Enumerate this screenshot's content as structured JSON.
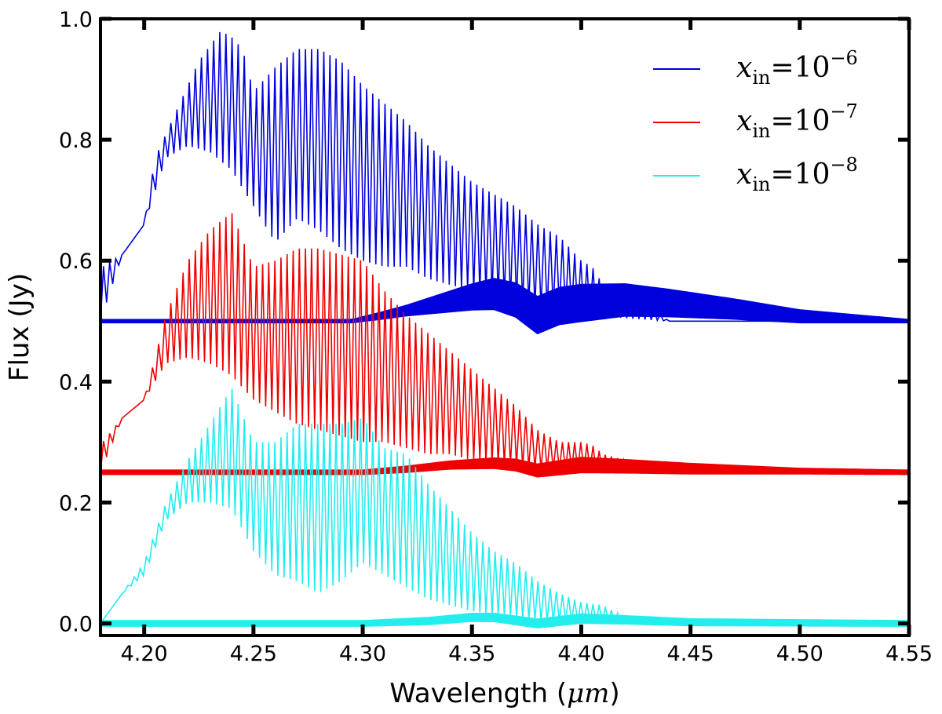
{
  "chart_data": {
    "type": "line",
    "title": "",
    "xlabel_prefix": "Wavelength (",
    "xlabel_unit": "μm",
    "xlabel_suffix": ")",
    "ylabel": "Flux (Jy)",
    "xlim": [
      4.18,
      4.55
    ],
    "ylim": [
      -0.02,
      1.0
    ],
    "x_ticks": [
      4.2,
      4.25,
      4.3,
      4.35,
      4.4,
      4.45,
      4.5,
      4.55
    ],
    "x_tick_labels": [
      "4.20",
      "4.25",
      "4.30",
      "4.35",
      "4.40",
      "4.45",
      "4.50",
      "4.55"
    ],
    "y_ticks": [
      0.0,
      0.2,
      0.4,
      0.6,
      0.8,
      1.0
    ],
    "y_tick_labels": [
      "0.0",
      "0.2",
      "0.4",
      "0.6",
      "0.8",
      "1.0"
    ],
    "grid": false,
    "legend_position": "top-right",
    "series": [
      {
        "name": "x_in=10^-6",
        "label_main": "x",
        "label_sub": "in",
        "label_eq": "=10",
        "label_exp": "−6",
        "color": "#0000dd",
        "offset": 0.5,
        "envelope_upper": [
          [
            4.18,
            0.0
          ],
          [
            4.181,
            0.09
          ],
          [
            4.19,
            0.11
          ],
          [
            4.2,
            0.16
          ],
          [
            4.205,
            0.27
          ],
          [
            4.215,
            0.35
          ],
          [
            4.225,
            0.43
          ],
          [
            4.235,
            0.48
          ],
          [
            4.24,
            0.47
          ],
          [
            4.245,
            0.45
          ],
          [
            4.25,
            0.38
          ],
          [
            4.26,
            0.42
          ],
          [
            4.27,
            0.45
          ],
          [
            4.28,
            0.45
          ],
          [
            4.29,
            0.43
          ],
          [
            4.3,
            0.39
          ],
          [
            4.31,
            0.36
          ],
          [
            4.32,
            0.33
          ],
          [
            4.33,
            0.29
          ],
          [
            4.34,
            0.26
          ],
          [
            4.35,
            0.23
          ],
          [
            4.36,
            0.21
          ],
          [
            4.37,
            0.19
          ],
          [
            4.38,
            0.16
          ],
          [
            4.39,
            0.14
          ],
          [
            4.4,
            0.1
          ],
          [
            4.405,
            0.09
          ],
          [
            4.41,
            0.06
          ],
          [
            4.42,
            0.045
          ],
          [
            4.43,
            0.03
          ],
          [
            4.44,
            0.0
          ],
          [
            4.55,
            0.0
          ]
        ],
        "envelope_lower": [
          [
            4.18,
            0.0
          ],
          [
            4.19,
            0.11
          ],
          [
            4.2,
            0.16
          ],
          [
            4.21,
            0.27
          ],
          [
            4.22,
            0.29
          ],
          [
            4.23,
            0.28
          ],
          [
            4.24,
            0.25
          ],
          [
            4.25,
            0.19
          ],
          [
            4.26,
            0.13
          ],
          [
            4.27,
            0.17
          ],
          [
            4.28,
            0.15
          ],
          [
            4.29,
            0.12
          ],
          [
            4.3,
            0.1
          ],
          [
            4.31,
            0.09
          ],
          [
            4.32,
            0.09
          ],
          [
            4.33,
            0.07
          ],
          [
            4.34,
            0.06
          ],
          [
            4.35,
            0.05
          ],
          [
            4.36,
            0.04
          ],
          [
            4.37,
            0.03
          ],
          [
            4.38,
            0.02
          ],
          [
            4.4,
            0.01
          ],
          [
            4.44,
            0.0
          ],
          [
            4.55,
            0.0
          ]
        ],
        "band_center": [
          [
            4.18,
            0.0
          ],
          [
            4.295,
            0.0
          ],
          [
            4.31,
            0.01
          ],
          [
            4.33,
            0.025
          ],
          [
            4.35,
            0.04
          ],
          [
            4.36,
            0.045
          ],
          [
            4.37,
            0.035
          ],
          [
            4.38,
            0.01
          ],
          [
            4.39,
            0.025
          ],
          [
            4.4,
            0.03
          ],
          [
            4.42,
            0.035
          ],
          [
            4.44,
            0.03
          ],
          [
            4.47,
            0.02
          ],
          [
            4.5,
            0.008
          ],
          [
            4.55,
            0.0
          ]
        ],
        "band_halfwidth": [
          [
            4.18,
            0.002
          ],
          [
            4.295,
            0.002
          ],
          [
            4.32,
            0.008
          ],
          [
            4.36,
            0.025
          ],
          [
            4.38,
            0.03
          ],
          [
            4.4,
            0.03
          ],
          [
            4.45,
            0.02
          ],
          [
            4.5,
            0.01
          ],
          [
            4.55,
            0.002
          ]
        ]
      },
      {
        "name": "x_in=10^-7",
        "label_main": "x",
        "label_sub": "in",
        "label_eq": "=10",
        "label_exp": "−7",
        "color": "#ee0000",
        "offset": 0.25,
        "envelope_upper": [
          [
            4.18,
            0.0
          ],
          [
            4.181,
            0.05
          ],
          [
            4.19,
            0.09
          ],
          [
            4.2,
            0.12
          ],
          [
            4.21,
            0.26
          ],
          [
            4.22,
            0.35
          ],
          [
            4.23,
            0.4
          ],
          [
            4.24,
            0.43
          ],
          [
            4.25,
            0.34
          ],
          [
            4.26,
            0.35
          ],
          [
            4.27,
            0.37
          ],
          [
            4.28,
            0.37
          ],
          [
            4.29,
            0.36
          ],
          [
            4.3,
            0.35
          ],
          [
            4.31,
            0.3
          ],
          [
            4.32,
            0.26
          ],
          [
            4.33,
            0.23
          ],
          [
            4.34,
            0.2
          ],
          [
            4.35,
            0.17
          ],
          [
            4.36,
            0.14
          ],
          [
            4.37,
            0.11
          ],
          [
            4.38,
            0.07
          ],
          [
            4.39,
            0.05
          ],
          [
            4.4,
            0.05
          ],
          [
            4.405,
            0.045
          ],
          [
            4.41,
            0.03
          ],
          [
            4.42,
            0.02
          ],
          [
            4.43,
            0.005
          ],
          [
            4.44,
            0.0
          ],
          [
            4.55,
            0.0
          ]
        ],
        "envelope_lower": [
          [
            4.18,
            0.0
          ],
          [
            4.19,
            0.09
          ],
          [
            4.2,
            0.12
          ],
          [
            4.21,
            0.18
          ],
          [
            4.22,
            0.19
          ],
          [
            4.23,
            0.18
          ],
          [
            4.24,
            0.16
          ],
          [
            4.25,
            0.12
          ],
          [
            4.26,
            0.1
          ],
          [
            4.27,
            0.08
          ],
          [
            4.28,
            0.07
          ],
          [
            4.29,
            0.06
          ],
          [
            4.3,
            0.05
          ],
          [
            4.31,
            0.05
          ],
          [
            4.32,
            0.04
          ],
          [
            4.33,
            0.03
          ],
          [
            4.34,
            0.03
          ],
          [
            4.35,
            0.02
          ],
          [
            4.36,
            0.015
          ],
          [
            4.37,
            0.01
          ],
          [
            4.38,
            0.005
          ],
          [
            4.4,
            0.002
          ],
          [
            4.44,
            0.0
          ],
          [
            4.55,
            0.0
          ]
        ],
        "band_center": [
          [
            4.18,
            0.0
          ],
          [
            4.3,
            0.0
          ],
          [
            4.32,
            0.005
          ],
          [
            4.34,
            0.012
          ],
          [
            4.36,
            0.015
          ],
          [
            4.37,
            0.012
          ],
          [
            4.38,
            0.003
          ],
          [
            4.4,
            0.012
          ],
          [
            4.42,
            0.01
          ],
          [
            4.45,
            0.006
          ],
          [
            4.5,
            0.002
          ],
          [
            4.55,
            0.0
          ]
        ],
        "band_halfwidth": [
          [
            4.18,
            0.003
          ],
          [
            4.3,
            0.003
          ],
          [
            4.34,
            0.006
          ],
          [
            4.38,
            0.01
          ],
          [
            4.4,
            0.012
          ],
          [
            4.45,
            0.008
          ],
          [
            4.5,
            0.004
          ],
          [
            4.55,
            0.003
          ]
        ]
      },
      {
        "name": "x_in=10^-8",
        "label_main": "x",
        "label_sub": "in",
        "label_eq": "=10",
        "label_exp": "−8",
        "color": "#22eeee",
        "offset": 0.0,
        "envelope_upper": [
          [
            4.18,
            0.0
          ],
          [
            4.19,
            0.05
          ],
          [
            4.2,
            0.1
          ],
          [
            4.21,
            0.2
          ],
          [
            4.22,
            0.27
          ],
          [
            4.23,
            0.33
          ],
          [
            4.24,
            0.39
          ],
          [
            4.25,
            0.3
          ],
          [
            4.26,
            0.3
          ],
          [
            4.27,
            0.33
          ],
          [
            4.28,
            0.33
          ],
          [
            4.29,
            0.33
          ],
          [
            4.3,
            0.34
          ],
          [
            4.31,
            0.29
          ],
          [
            4.32,
            0.28
          ],
          [
            4.33,
            0.23
          ],
          [
            4.34,
            0.19
          ],
          [
            4.35,
            0.15
          ],
          [
            4.36,
            0.12
          ],
          [
            4.37,
            0.1
          ],
          [
            4.38,
            0.07
          ],
          [
            4.39,
            0.05
          ],
          [
            4.4,
            0.035
          ],
          [
            4.41,
            0.03
          ],
          [
            4.42,
            0.01
          ],
          [
            4.43,
            0.0
          ],
          [
            4.55,
            0.0
          ]
        ],
        "envelope_lower": [
          [
            4.18,
            0.0
          ],
          [
            4.19,
            0.05
          ],
          [
            4.2,
            0.08
          ],
          [
            4.21,
            0.17
          ],
          [
            4.22,
            0.2
          ],
          [
            4.23,
            0.2
          ],
          [
            4.24,
            0.19
          ],
          [
            4.25,
            0.12
          ],
          [
            4.26,
            0.08
          ],
          [
            4.27,
            0.07
          ],
          [
            4.28,
            0.05
          ],
          [
            4.29,
            0.07
          ],
          [
            4.3,
            0.1
          ],
          [
            4.31,
            0.08
          ],
          [
            4.32,
            0.06
          ],
          [
            4.33,
            0.04
          ],
          [
            4.34,
            0.03
          ],
          [
            4.35,
            0.02
          ],
          [
            4.36,
            0.015
          ],
          [
            4.37,
            0.01
          ],
          [
            4.38,
            0.005
          ],
          [
            4.4,
            0.002
          ],
          [
            4.43,
            0.0
          ],
          [
            4.55,
            0.0
          ]
        ],
        "band_center": [
          [
            4.18,
            0.0
          ],
          [
            4.3,
            0.0
          ],
          [
            4.33,
            0.004
          ],
          [
            4.35,
            0.01
          ],
          [
            4.36,
            0.01
          ],
          [
            4.38,
            0.0
          ],
          [
            4.4,
            0.008
          ],
          [
            4.42,
            0.006
          ],
          [
            4.45,
            0.002
          ],
          [
            4.55,
            0.0
          ]
        ],
        "band_halfwidth": [
          [
            4.18,
            0.004
          ],
          [
            4.3,
            0.004
          ],
          [
            4.35,
            0.006
          ],
          [
            4.4,
            0.007
          ],
          [
            4.45,
            0.005
          ],
          [
            4.55,
            0.004
          ]
        ]
      }
    ],
    "oscillation_period_um": 0.0028
  }
}
